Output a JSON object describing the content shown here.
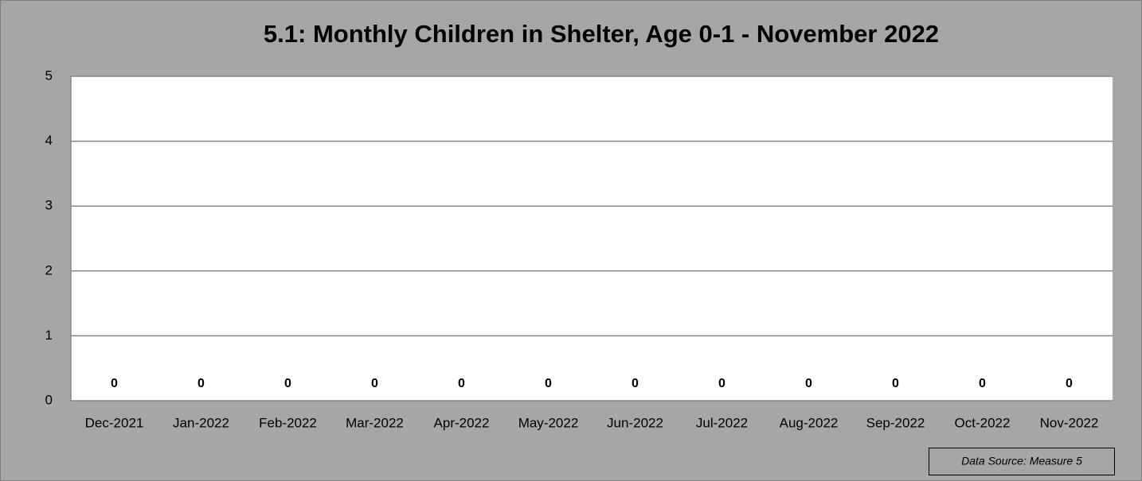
{
  "chart_data": {
    "type": "bar",
    "title": "5.1: Monthly Children in Shelter, Age 0-1 - November 2022",
    "categories": [
      "Dec-2021",
      "Jan-2022",
      "Feb-2022",
      "Mar-2022",
      "Apr-2022",
      "May-2022",
      "Jun-2022",
      "Jul-2022",
      "Aug-2022",
      "Sep-2022",
      "Oct-2022",
      "Nov-2022"
    ],
    "values": [
      0,
      0,
      0,
      0,
      0,
      0,
      0,
      0,
      0,
      0,
      0,
      0
    ],
    "color": "#4f81bd",
    "ylim": [
      0,
      5
    ],
    "yticks": [
      0,
      1,
      2,
      3,
      4,
      5
    ],
    "grid": true,
    "annotation": "Data Source: Measure 5"
  }
}
